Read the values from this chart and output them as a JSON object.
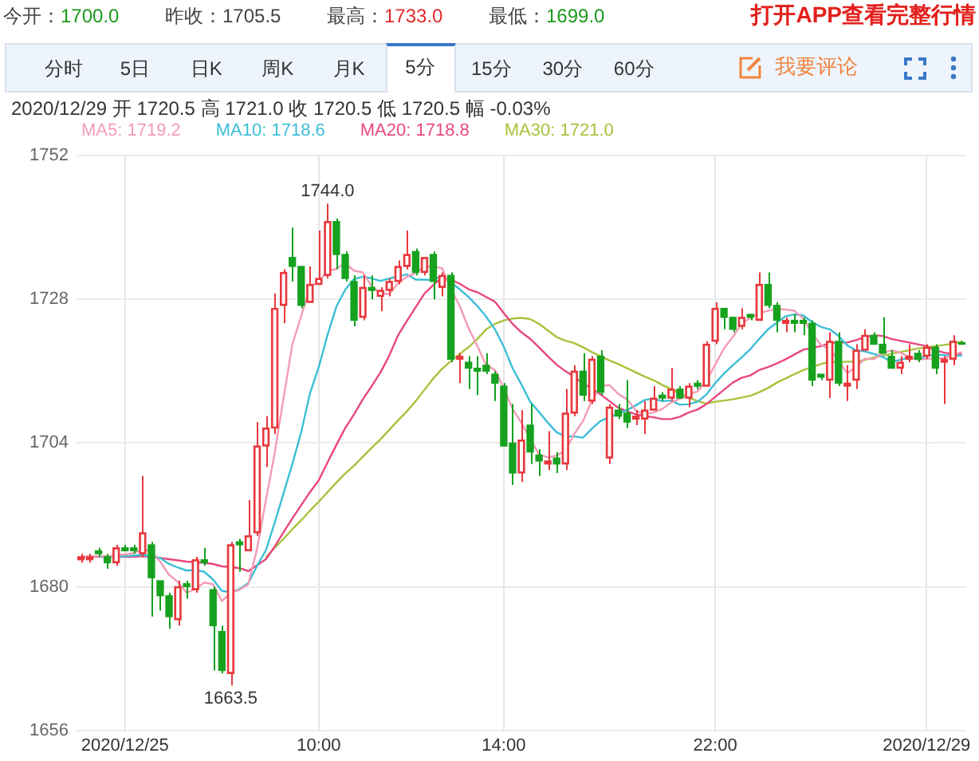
{
  "chart_data": {
    "type": "candlestick",
    "subtitle": "2020/12/29 开 1720.5 高 1721.0 收 1720.5 低 1720.5 幅 -0.03%",
    "annotations": [
      "今开：1700.0",
      "昨收：1705.5",
      "最高：1733.0",
      "最低：1699.0",
      "打开APP查看完整行情",
      "分时",
      "5日",
      "日K",
      "周K",
      "月K",
      "5分",
      "15分",
      "30分",
      "60分",
      "我要评论",
      {
        "text": "1744.0",
        "y": 1744.0
      },
      {
        "text": "1663.5",
        "y": 1663.5
      }
    ],
    "categories": [
      null,
      null,
      null,
      null,
      null,
      "2020/12/25",
      null,
      null,
      null,
      null,
      null,
      null,
      null,
      null,
      null,
      null,
      null,
      null,
      null,
      null,
      null,
      null,
      null,
      null,
      null,
      null,
      null,
      "10:00",
      null,
      null,
      null,
      null,
      null,
      null,
      null,
      null,
      null,
      null,
      null,
      null,
      null,
      null,
      null,
      null,
      null,
      null,
      null,
      null,
      "14:00",
      null,
      null,
      null,
      null,
      null,
      null,
      null,
      null,
      null,
      null,
      null,
      null,
      null,
      null,
      null,
      null,
      null,
      null,
      null,
      null,
      null,
      null,
      null,
      "22:00",
      null,
      null,
      null,
      null,
      null,
      null,
      null,
      null,
      null,
      null,
      null,
      null,
      null,
      null,
      null,
      null,
      null,
      null,
      null,
      null,
      null,
      null,
      null,
      "2020/12/29",
      null,
      null,
      null,
      null
    ],
    "ohlc": [
      [
        1684.5,
        1685.5,
        1684.0,
        1685.0
      ],
      [
        1684.5,
        1685.5,
        1684.0,
        1685.0
      ],
      [
        1686.0,
        1686.5,
        1685.0,
        1685.5
      ],
      [
        1685.0,
        1685.5,
        1683.0,
        1684.0
      ],
      [
        1684.0,
        1687.0,
        1683.5,
        1686.5
      ],
      [
        1686.5,
        1687.0,
        1686.0,
        1686.0
      ],
      [
        1686.5,
        1687.0,
        1685.5,
        1686.0
      ],
      [
        1685.5,
        1698.5,
        1685.0,
        1689.0
      ],
      [
        1687.0,
        1687.5,
        1675.0,
        1681.5
      ],
      [
        1681.0,
        1681.0,
        1676.0,
        1678.5
      ],
      [
        1678.5,
        1679.0,
        1673.0,
        1675.0
      ],
      [
        1674.5,
        1681.0,
        1673.5,
        1680.0
      ],
      [
        1680.5,
        1681.0,
        1678.0,
        1680.0
      ],
      [
        1679.5,
        1685.0,
        1679.0,
        1684.5
      ],
      [
        1684.5,
        1686.5,
        1683.5,
        1684.0
      ],
      [
        1679.5,
        1680.0,
        1666.0,
        1673.5
      ],
      [
        1672.5,
        1673.5,
        1665.5,
        1666.0
      ],
      [
        1665.5,
        1687.5,
        1663.5,
        1687.0
      ],
      [
        1687.5,
        1688.0,
        1682.5,
        1687.0
      ],
      [
        1686.0,
        1694.5,
        1686.0,
        1688.5
      ],
      [
        1689.0,
        1707.5,
        1688.5,
        1703.5
      ],
      [
        1703.5,
        1708.5,
        1700.0,
        1706.5
      ],
      [
        1706.5,
        1729.0,
        1705.5,
        1726.5
      ],
      [
        1727.0,
        1733.0,
        1724.0,
        1732.5
      ],
      [
        1735.0,
        1740.0,
        1731.0,
        1733.5
      ],
      [
        1733.5,
        1733.5,
        1726.5,
        1727.0
      ],
      [
        1727.5,
        1733.5,
        1727.5,
        1730.5
      ],
      [
        1730.5,
        1739.5,
        1730.5,
        1731.5
      ],
      [
        1732.0,
        1744.0,
        1731.5,
        1741.0
      ],
      [
        1741.0,
        1741.5,
        1733.0,
        1735.5
      ],
      [
        1735.5,
        1736.0,
        1731.0,
        1731.5
      ],
      [
        1731.0,
        1732.0,
        1723.5,
        1724.5
      ],
      [
        1725.0,
        1732.0,
        1724.5,
        1730.0
      ],
      [
        1730.0,
        1732.0,
        1728.0,
        1729.5
      ],
      [
        1728.5,
        1730.0,
        1726.0,
        1729.5
      ],
      [
        1729.5,
        1731.5,
        1728.5,
        1731.0
      ],
      [
        1731.0,
        1734.5,
        1730.5,
        1733.5
      ],
      [
        1733.5,
        1739.5,
        1733.0,
        1735.5
      ],
      [
        1736.0,
        1736.5,
        1732.0,
        1732.5
      ],
      [
        1732.5,
        1735.0,
        1732.0,
        1735.0
      ],
      [
        1735.5,
        1736.0,
        1728.0,
        1731.0
      ],
      [
        1730.0,
        1732.5,
        1728.5,
        1732.0
      ],
      [
        1732.0,
        1732.5,
        1717.5,
        1718.0
      ],
      [
        1718.0,
        1719.0,
        1714.0,
        1718.5
      ],
      [
        1717.5,
        1718.5,
        1713.0,
        1716.5
      ],
      [
        1716.5,
        1718.5,
        1712.0,
        1716.0
      ],
      [
        1717.0,
        1719.0,
        1715.5,
        1716.0
      ],
      [
        1715.5,
        1716.0,
        1711.0,
        1714.0
      ],
      [
        1713.5,
        1714.0,
        1703.5,
        1703.5
      ],
      [
        1704.0,
        1710.5,
        1697.0,
        1699.0
      ],
      [
        1699.0,
        1709.5,
        1697.5,
        1704.5
      ],
      [
        1707.0,
        1710.5,
        1700.5,
        1702.5
      ],
      [
        1702.0,
        1703.0,
        1698.5,
        1701.0
      ],
      [
        1700.5,
        1706.0,
        1699.5,
        1701.0
      ],
      [
        1701.5,
        1702.5,
        1699.0,
        1700.5
      ],
      [
        1700.5,
        1713.0,
        1699.5,
        1709.0
      ],
      [
        1709.0,
        1717.0,
        1708.5,
        1716.0
      ],
      [
        1716.0,
        1719.0,
        1711.0,
        1712.0
      ],
      [
        1711.0,
        1718.5,
        1710.5,
        1718.0
      ],
      [
        1718.5,
        1719.5,
        1712.0,
        1712.5
      ],
      [
        1701.5,
        1710.5,
        1700.5,
        1710.0
      ],
      [
        1709.5,
        1710.5,
        1708.0,
        1708.5
      ],
      [
        1709.0,
        1714.5,
        1706.5,
        1707.5
      ],
      [
        1708.0,
        1709.5,
        1707.0,
        1708.5
      ],
      [
        1708.0,
        1711.0,
        1705.5,
        1709.5
      ],
      [
        1709.5,
        1713.5,
        1709.5,
        1711.5
      ],
      [
        1712.0,
        1712.5,
        1711.0,
        1711.5
      ],
      [
        1711.5,
        1716.5,
        1711.0,
        1713.0
      ],
      [
        1713.0,
        1713.5,
        1711.5,
        1711.5
      ],
      [
        1711.5,
        1714.0,
        1710.0,
        1713.5
      ],
      [
        1714.0,
        1714.5,
        1713.0,
        1713.5
      ],
      [
        1713.5,
        1721.0,
        1713.5,
        1720.5
      ],
      [
        1721.0,
        1727.5,
        1720.5,
        1726.5
      ],
      [
        1726.5,
        1726.5,
        1723.0,
        1725.0
      ],
      [
        1725.0,
        1725.0,
        1722.5,
        1723.0
      ],
      [
        1723.5,
        1726.5,
        1723.0,
        1725.0
      ],
      [
        1725.5,
        1725.5,
        1724.5,
        1725.0
      ],
      [
        1724.5,
        1732.5,
        1724.5,
        1730.5
      ],
      [
        1730.5,
        1732.5,
        1726.5,
        1727.0
      ],
      [
        1727.0,
        1727.5,
        1722.5,
        1724.5
      ],
      [
        1724.0,
        1725.0,
        1722.5,
        1724.5
      ],
      [
        1724.5,
        1725.5,
        1722.5,
        1724.0
      ],
      [
        1724.5,
        1725.0,
        1722.0,
        1724.0
      ],
      [
        1724.0,
        1724.5,
        1713.5,
        1714.5
      ],
      [
        1715.5,
        1715.5,
        1714.5,
        1715.0
      ],
      [
        1714.5,
        1722.5,
        1711.5,
        1721.0
      ],
      [
        1721.0,
        1722.5,
        1713.5,
        1714.0
      ],
      [
        1713.5,
        1717.0,
        1711.0,
        1714.0
      ],
      [
        1714.5,
        1720.5,
        1713.0,
        1719.5
      ],
      [
        1719.5,
        1723.0,
        1719.5,
        1722.0
      ],
      [
        1722.0,
        1722.5,
        1720.5,
        1720.5
      ],
      [
        1720.5,
        1725.0,
        1719.0,
        1719.0
      ],
      [
        1718.5,
        1719.5,
        1716.5,
        1716.5
      ],
      [
        1716.5,
        1718.5,
        1715.5,
        1717.5
      ],
      [
        1718.0,
        1720.5,
        1717.5,
        1718.5
      ],
      [
        1719.0,
        1719.5,
        1717.5,
        1718.0
      ],
      [
        1718.5,
        1720.5,
        1718.0,
        1720.0
      ],
      [
        1720.0,
        1720.5,
        1715.5,
        1716.5
      ],
      [
        1717.5,
        1718.5,
        1710.5,
        1718.0
      ],
      [
        1718.0,
        1722.0,
        1717.0,
        1721.0
      ],
      [
        1720.5,
        1721.0,
        1720.5,
        1720.5
      ]
    ],
    "colors": [
      "#e8383d",
      "#e8383d",
      "#16a21e",
      "#16a21e",
      "#e8383d",
      "#16a21e",
      "#16a21e",
      "#e8383d",
      "#16a21e",
      "#16a21e",
      "#16a21e",
      "#e8383d",
      "#16a21e",
      "#e8383d",
      "#16a21e",
      "#16a21e",
      "#16a21e",
      "#e8383d",
      "#16a21e",
      "#e8383d",
      "#e8383d",
      "#e8383d",
      "#e8383d",
      "#e8383d",
      "#16a21e",
      "#16a21e",
      "#e8383d",
      "#e8383d",
      "#e8383d",
      "#16a21e",
      "#16a21e",
      "#16a21e",
      "#e8383d",
      "#16a21e",
      "#e8383d",
      "#e8383d",
      "#e8383d",
      "#e8383d",
      "#16a21e",
      "#e8383d",
      "#16a21e",
      "#e8383d",
      "#16a21e",
      "#e8383d",
      "#16a21e",
      "#16a21e",
      "#16a21e",
      "#16a21e",
      "#16a21e",
      "#16a21e",
      "#e8383d",
      "#16a21e",
      "#16a21e",
      "#e8383d",
      "#16a21e",
      "#e8383d",
      "#e8383d",
      "#16a21e",
      "#e8383d",
      "#16a21e",
      "#e8383d",
      "#16a21e",
      "#16a21e",
      "#e8383d",
      "#e8383d",
      "#e8383d",
      "#16a21e",
      "#e8383d",
      "#16a21e",
      "#e8383d",
      "#16a21e",
      "#e8383d",
      "#e8383d",
      "#16a21e",
      "#16a21e",
      "#e8383d",
      "#16a21e",
      "#e8383d",
      "#16a21e",
      "#16a21e",
      "#e8383d",
      "#16a21e",
      "#16a21e",
      "#16a21e",
      "#16a21e",
      "#e8383d",
      "#16a21e",
      "#e8383d",
      "#e8383d",
      "#e8383d",
      "#16a21e",
      "#16a21e",
      "#16a21e",
      "#e8383d",
      "#e8383d",
      "#16a21e",
      "#e8383d",
      "#16a21e",
      "#e8383d",
      "#e8383d",
      "#16a21e"
    ],
    "series": [
      {
        "type": "line",
        "name": "MA5: 1719.2",
        "color": "#f39bb6",
        "values": [
          1685.0,
          1685.0,
          1685.1,
          1685.1,
          1685.2,
          1685.4,
          1685.6,
          1686.3,
          1685.8,
          1684.2,
          1682.0,
          1680.8,
          1679.0,
          1679.6,
          1680.7,
          1680.4,
          1677.6,
          1679.0,
          1679.5,
          1680.4,
          1686.4,
          1694.5,
          1702.4,
          1711.5,
          1720.5,
          1725.2,
          1730.0,
          1731.0,
          1732.7,
          1733.1,
          1734.0,
          1732.8,
          1732.5,
          1730.2,
          1729.0,
          1728.9,
          1730.7,
          1731.8,
          1732.4,
          1733.5,
          1733.5,
          1733.2,
          1729.7,
          1726.9,
          1723.2,
          1720.2,
          1717.0,
          1716.2,
          1713.2,
          1709.7,
          1707.4,
          1704.7,
          1702.1,
          1701.6,
          1701.9,
          1702.8,
          1705.5,
          1707.7,
          1711.1,
          1713.5,
          1713.7,
          1712.2,
          1711.3,
          1709.4,
          1708.8,
          1709.1,
          1709.7,
          1710.8,
          1711.4,
          1712.2,
          1712.6,
          1714.4,
          1717.1,
          1719.8,
          1721.7,
          1724.0,
          1724.9,
          1725.7,
          1726.1,
          1726.4,
          1726.3,
          1726.1,
          1724.8,
          1722.3,
          1720.4,
          1719.7,
          1717.7,
          1715.7,
          1716.7,
          1718.1,
          1718.0,
          1719.0,
          1719.5,
          1719.1,
          1718.4,
          1717.9,
          1718.1,
          1718.1,
          1718.2,
          1718.7,
          1719.2
        ]
      },
      {
        "type": "line",
        "name": "MA10: 1718.6",
        "color": "#3cbfd6",
        "values": [
          null,
          null,
          1685.0,
          1685.0,
          1685.0,
          1685.1,
          1685.2,
          1685.3,
          1685.1,
          1684.8,
          1683.8,
          1683.2,
          1682.7,
          1682.8,
          1682.5,
          1681.2,
          1679.3,
          1679.1,
          1679.6,
          1680.6,
          1683.5,
          1686.1,
          1690.7,
          1695.6,
          1700.5,
          1705.8,
          1712.3,
          1716.7,
          1722.1,
          1726.8,
          1729.6,
          1731.4,
          1731.8,
          1731.5,
          1731.1,
          1731.5,
          1731.8,
          1732.2,
          1731.3,
          1731.3,
          1731.2,
          1732.0,
          1730.8,
          1729.7,
          1728.4,
          1726.9,
          1725.1,
          1723.0,
          1720.1,
          1716.5,
          1713.8,
          1710.9,
          1709.2,
          1707.4,
          1705.8,
          1705.1,
          1705.1,
          1704.9,
          1706.4,
          1707.7,
          1708.3,
          1708.9,
          1709.5,
          1710.3,
          1711.2,
          1711.4,
          1711.0,
          1711.1,
          1710.4,
          1710.5,
          1710.9,
          1712.1,
          1714.0,
          1715.6,
          1717.0,
          1718.3,
          1719.7,
          1721.4,
          1723.0,
          1724.1,
          1725.2,
          1725.5,
          1725.3,
          1724.2,
          1723.4,
          1723.0,
          1721.9,
          1720.3,
          1719.5,
          1719.3,
          1718.9,
          1718.4,
          1717.6,
          1717.9,
          1718.3,
          1718.0,
          1718.6,
          1718.8,
          1718.7,
          1718.6,
          1718.6
        ]
      },
      {
        "type": "line",
        "name": "MA20: 1718.8",
        "color": "#e8487e",
        "values": [
          1685.0,
          1685.0,
          1685.0,
          1685.0,
          1685.0,
          1685.0,
          1685.0,
          1685.1,
          1685.0,
          1684.8,
          1684.6,
          1684.4,
          1684.2,
          1684.1,
          1684.0,
          1683.8,
          1683.4,
          1683.3,
          1683.1,
          1682.6,
          1683.6,
          1684.6,
          1686.7,
          1689.1,
          1691.4,
          1693.6,
          1695.8,
          1697.8,
          1700.8,
          1703.7,
          1706.5,
          1708.8,
          1711.3,
          1713.5,
          1715.8,
          1718.6,
          1722.0,
          1724.4,
          1726.7,
          1729.0,
          1730.4,
          1731.7,
          1731.3,
          1730.6,
          1729.7,
          1729.2,
          1728.4,
          1727.6,
          1725.7,
          1723.9,
          1722.5,
          1721.4,
          1720.0,
          1718.5,
          1717.1,
          1716.0,
          1715.1,
          1713.9,
          1713.2,
          1712.1,
          1711.0,
          1709.9,
          1709.3,
          1708.8,
          1708.5,
          1708.3,
          1708.0,
          1708.0,
          1708.4,
          1709.1,
          1709.6,
          1710.5,
          1711.7,
          1712.9,
          1714.1,
          1714.9,
          1715.3,
          1716.2,
          1716.7,
          1717.3,
          1718.0,
          1718.8,
          1719.6,
          1719.9,
          1720.2,
          1720.7,
          1720.8,
          1720.8,
          1721.2,
          1721.7,
          1722.0,
          1721.9,
          1721.4,
          1721.1,
          1720.8,
          1720.5,
          1720.2,
          1719.5,
          1719.1,
          1718.9,
          1718.8
        ]
      },
      {
        "type": "line",
        "name": "MA30: 1721.0",
        "color": "#a6c33c",
        "values": [
          null,
          null,
          null,
          null,
          null,
          null,
          null,
          null,
          null,
          null,
          null,
          null,
          null,
          null,
          null,
          null,
          null,
          null,
          null,
          null,
          null,
          1684.9,
          1686.5,
          1688.0,
          1689.6,
          1691.1,
          1692.7,
          1694.2,
          1695.8,
          1697.4,
          1698.9,
          1700.2,
          1701.7,
          1703.2,
          1704.6,
          1706.2,
          1707.8,
          1709.3,
          1711.0,
          1712.9,
          1714.8,
          1716.4,
          1717.7,
          1718.9,
          1720.0,
          1721.4,
          1723.0,
          1723.9,
          1724.5,
          1724.8,
          1724.9,
          1724.7,
          1723.9,
          1722.8,
          1721.7,
          1721.1,
          1720.7,
          1720.0,
          1719.2,
          1718.5,
          1717.8,
          1717.2,
          1716.5,
          1715.8,
          1715.1,
          1714.5,
          1713.7,
          1713.0,
          1712.3,
          1711.6,
          1711.0,
          1710.6,
          1710.9,
          1711.1,
          1711.3,
          1711.6,
          1711.9,
          1712.5,
          1713.2,
          1714.1,
          1714.8,
          1715.5,
          1716.2,
          1716.7,
          1717.2,
          1717.6,
          1717.5,
          1717.6,
          1717.6,
          1717.9,
          1718.3,
          1718.6,
          1718.9,
          1719.2,
          1719.5,
          1719.8,
          1720.0,
          1720.2,
          1720.4,
          1720.6,
          1721.0
        ]
      }
    ],
    "ylim": [
      1656,
      1752
    ],
    "yticks": [
      1656,
      1680,
      1704,
      1728,
      1752
    ],
    "grid": true,
    "legend": "top left",
    "marker": "none"
  }
}
